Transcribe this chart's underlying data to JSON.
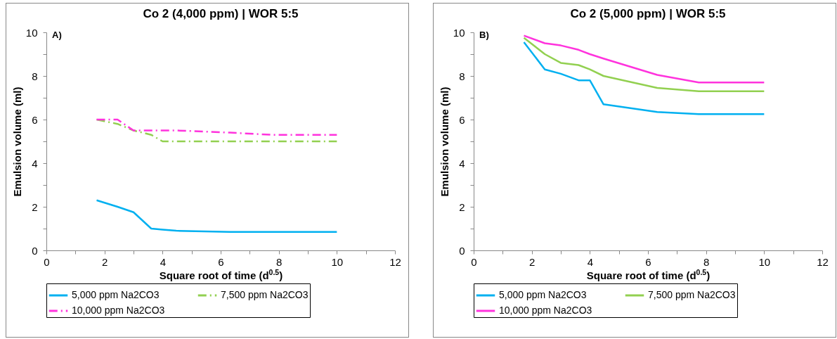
{
  "chart_data": [
    {
      "type": "line",
      "title": "Co 2 (4,000 ppm) | WOR 5:5",
      "xlabel": "Square root of time (d$^{0.5}$)",
      "ylabel": "Emulsion volume  (ml)",
      "annotations": [
        "A)"
      ],
      "x": [
        1.73,
        2.45,
        3,
        3.61,
        4,
        4.47,
        6.32,
        7.75,
        10
      ],
      "series": [
        {
          "name": "5,000 ppm Na2CO3",
          "color": "#00b0f0",
          "line_style": "solid",
          "values": [
            2.3,
            2.0,
            1.75,
            1.0,
            0.95,
            0.9,
            0.85,
            0.85,
            0.85
          ]
        },
        {
          "name": "7,500 ppm Na2CO3",
          "color": "#92d050",
          "line_style": "dashed",
          "values": [
            6.0,
            5.8,
            5.5,
            5.3,
            5.0,
            5.0,
            5.0,
            5.0,
            5.0
          ]
        },
        {
          "name": "10,000 ppm Na2CO3",
          "color": "#ff33dd",
          "line_style": "dashed",
          "values": [
            6.0,
            6.0,
            5.5,
            5.5,
            5.5,
            5.5,
            5.4,
            5.3,
            5.3
          ]
        }
      ],
      "xlim": [
        0,
        12
      ],
      "xticks": [
        0,
        {
          "value": 1,
          "label": null
        },
        2,
        {
          "value": 3,
          "label": null
        },
        4,
        {
          "value": 5,
          "label": null
        },
        6,
        {
          "value": 7,
          "label": null
        },
        8,
        {
          "value": 9,
          "label": null
        },
        10,
        {
          "value": 11,
          "label": null
        },
        12
      ],
      "ylim": [
        0,
        10
      ],
      "yticks": [
        0,
        {
          "value": 1,
          "label": null
        },
        2,
        {
          "value": 3,
          "label": null
        },
        4,
        {
          "value": 5,
          "label": null
        },
        6,
        {
          "value": 7,
          "label": null
        },
        8,
        {
          "value": 9,
          "label": null
        },
        10
      ],
      "grid": false,
      "legend": "bottom",
      "marker": "none"
    },
    {
      "type": "line",
      "title": "Co 2 (5,000 ppm) | WOR 5:5",
      "xlabel": "Square root of time (d$^{0.5}$)",
      "ylabel": "Emulsion volume  (ml)",
      "annotations": [
        "B)"
      ],
      "x": [
        1.73,
        2.45,
        3,
        3.61,
        4,
        4.47,
        6.32,
        7.75,
        10
      ],
      "series": [
        {
          "name": "5,000 ppm Na2CO3",
          "color": "#00b0f0",
          "line_style": "solid",
          "values": [
            9.55,
            8.3,
            8.1,
            7.8,
            7.8,
            6.7,
            6.35,
            6.25,
            6.25
          ]
        },
        {
          "name": "7,500 ppm Na2CO3",
          "color": "#92d050",
          "line_style": "solid",
          "values": [
            9.75,
            9.0,
            8.6,
            8.5,
            8.3,
            8.0,
            7.45,
            7.3,
            7.3
          ]
        },
        {
          "name": "10,000 ppm Na2CO3",
          "color": "#ff33dd",
          "line_style": "solid",
          "values": [
            9.85,
            9.5,
            9.4,
            9.2,
            9.0,
            8.8,
            8.05,
            7.7,
            7.7
          ]
        }
      ],
      "xlim": [
        0,
        12
      ],
      "xticks": [
        0,
        {
          "value": 1,
          "label": null
        },
        2,
        {
          "value": 3,
          "label": null
        },
        4,
        {
          "value": 5,
          "label": null
        },
        6,
        {
          "value": 7,
          "label": null
        },
        8,
        {
          "value": 9,
          "label": null
        },
        10,
        {
          "value": 11,
          "label": null
        },
        12
      ],
      "ylim": [
        0,
        10
      ],
      "yticks": [
        0,
        {
          "value": 1,
          "label": null
        },
        2,
        {
          "value": 3,
          "label": null
        },
        4,
        {
          "value": 5,
          "label": null
        },
        6,
        {
          "value": 7,
          "label": null
        },
        8,
        {
          "value": 9,
          "label": null
        },
        10
      ],
      "grid": false,
      "legend": "bottom",
      "marker": "none"
    }
  ]
}
